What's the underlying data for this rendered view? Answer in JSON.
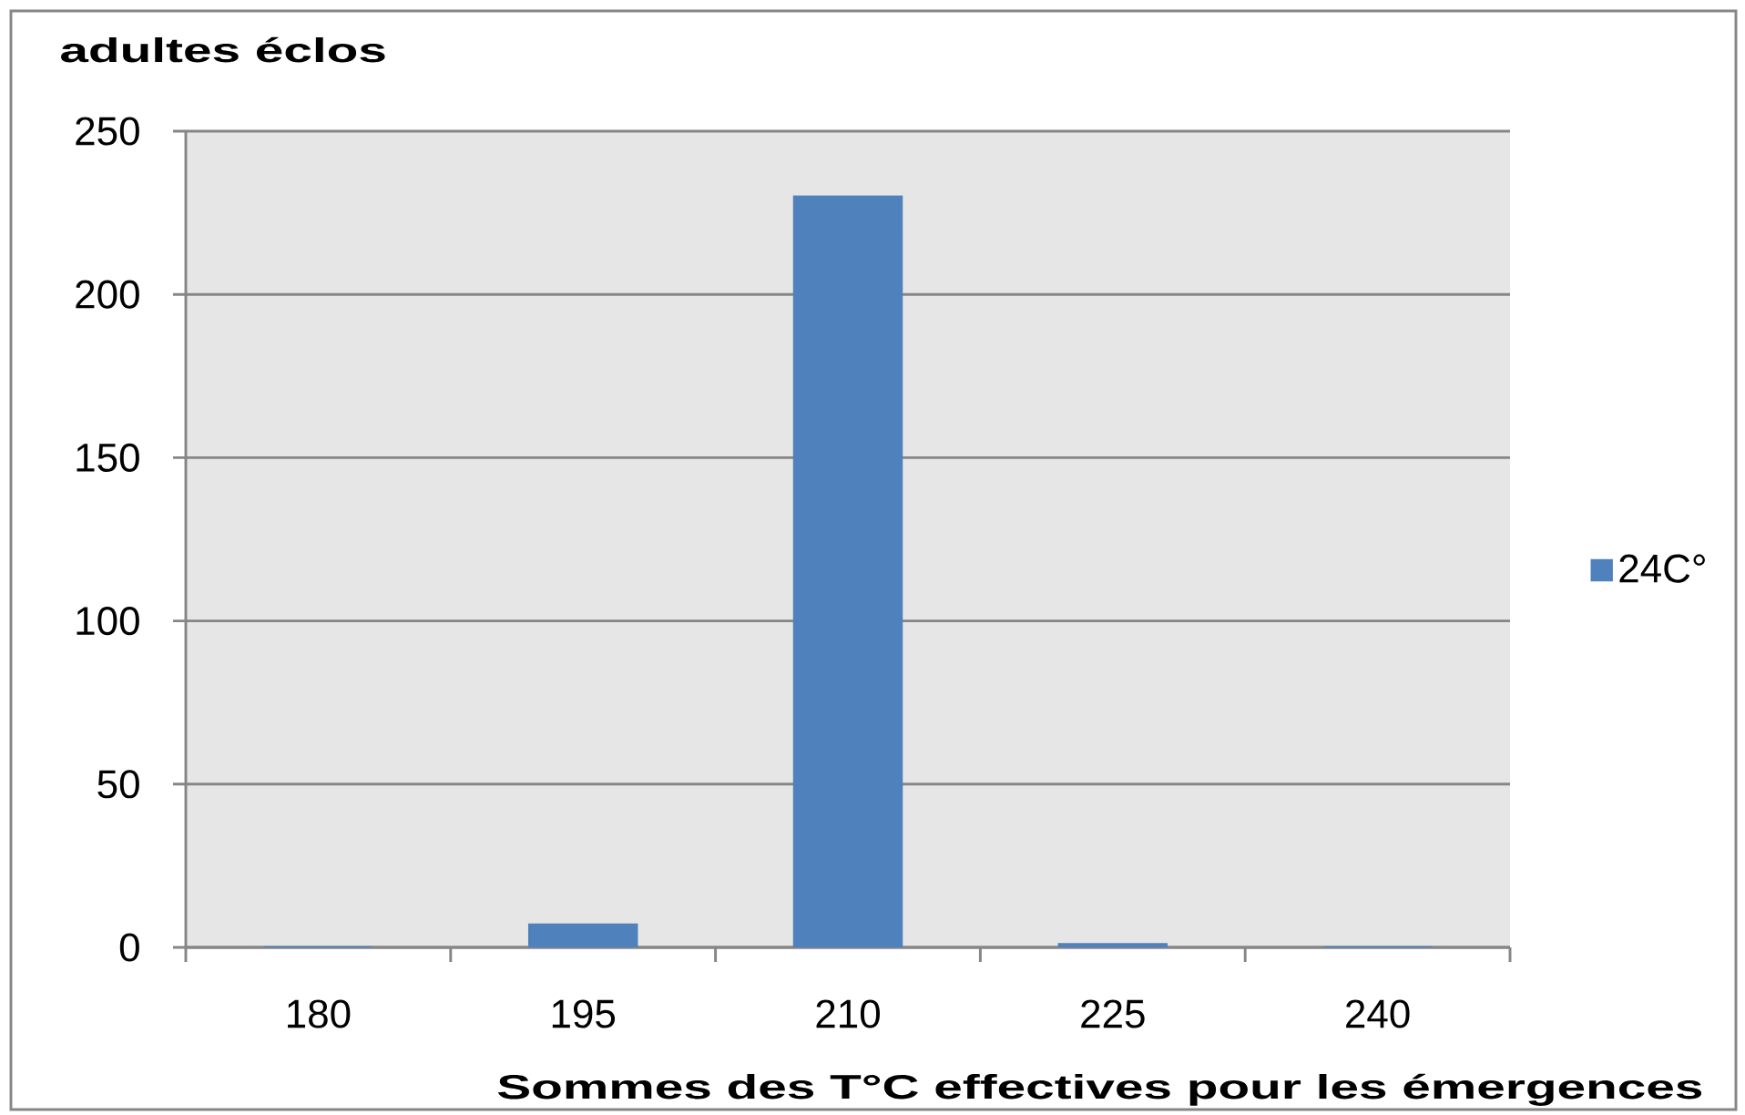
{
  "chart_data": {
    "type": "bar",
    "ylabel": "adultes éclos",
    "xlabel": "Sommes des T°C effectives pour les émergences",
    "categories": [
      "180",
      "195",
      "210",
      "225",
      "240"
    ],
    "series": [
      {
        "name": "24C°",
        "color": "#4f81bd",
        "values": [
          0,
          7,
          230,
          1,
          0
        ]
      }
    ],
    "ylim": [
      0,
      250
    ],
    "yticks": [
      0,
      50,
      100,
      150,
      200,
      250
    ],
    "grid": "y",
    "legend": "right"
  }
}
